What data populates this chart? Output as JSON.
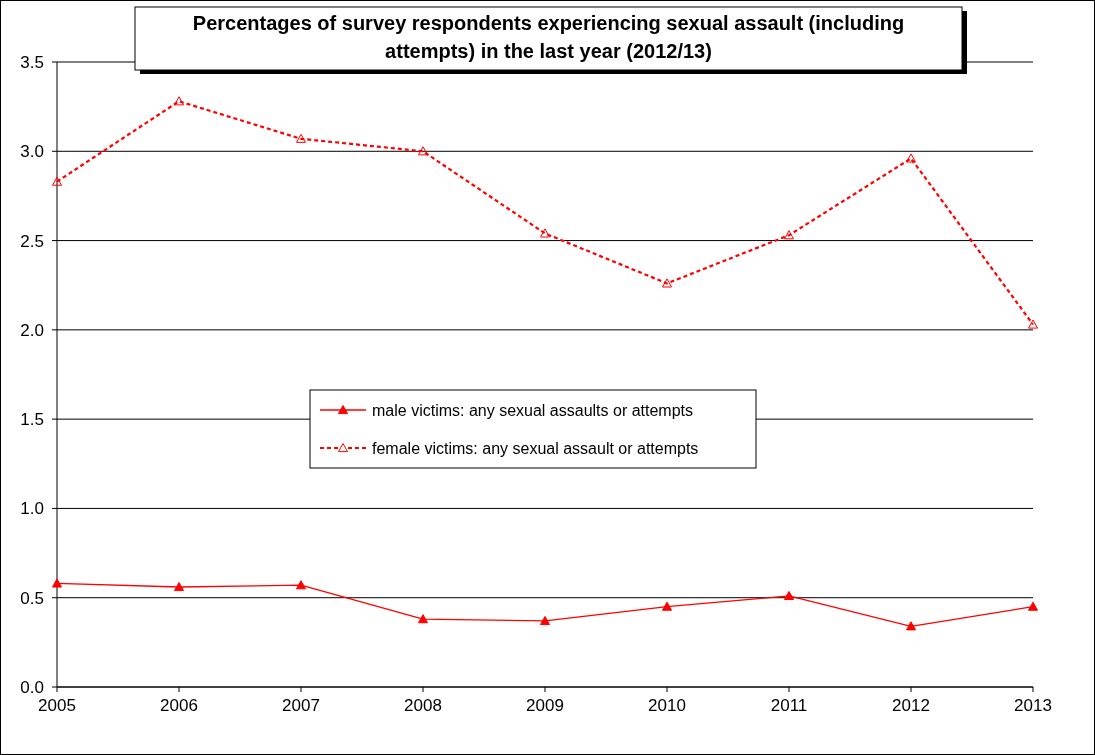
{
  "chart_data": {
    "type": "line",
    "title": "Percentages of survey respondents experiencing sexual assault (including attempts) in the last year (2012/13)",
    "x": [
      2005,
      2006,
      2007,
      2008,
      2009,
      2010,
      2011,
      2012,
      2013
    ],
    "xlim": [
      2005,
      2013
    ],
    "xticks": [
      2005,
      2006,
      2007,
      2008,
      2009,
      2010,
      2011,
      2012,
      2013
    ],
    "ylim": [
      0,
      3.5
    ],
    "yticks": [
      {
        "value": 0,
        "label": "0.0"
      },
      {
        "value": 0.5,
        "label": "0.5"
      },
      {
        "value": 1,
        "label": "1.0"
      },
      {
        "value": 1.5,
        "label": "1.5"
      },
      {
        "value": 2,
        "label": "2.0"
      },
      {
        "value": 2.5,
        "label": "2.5"
      },
      {
        "value": 3,
        "label": "3.0"
      },
      {
        "value": 3.5,
        "label": "3.5"
      }
    ],
    "grid": "y",
    "legend": "center",
    "marker": "triangle",
    "series": [
      {
        "name": "male victims: any sexual assaults or attempts",
        "color": "#ff0000",
        "line_style": "solid",
        "values": [
          0.58,
          0.56,
          0.57,
          0.38,
          0.37,
          0.45,
          0.51,
          0.34,
          0.45
        ]
      },
      {
        "name": "female victims: any sexual assault or attempts",
        "color": "#ff0000",
        "line_style": "dashed",
        "values": [
          2.83,
          3.28,
          3.07,
          3.0,
          2.54,
          2.26,
          2.53,
          2.96,
          2.03
        ]
      }
    ]
  }
}
